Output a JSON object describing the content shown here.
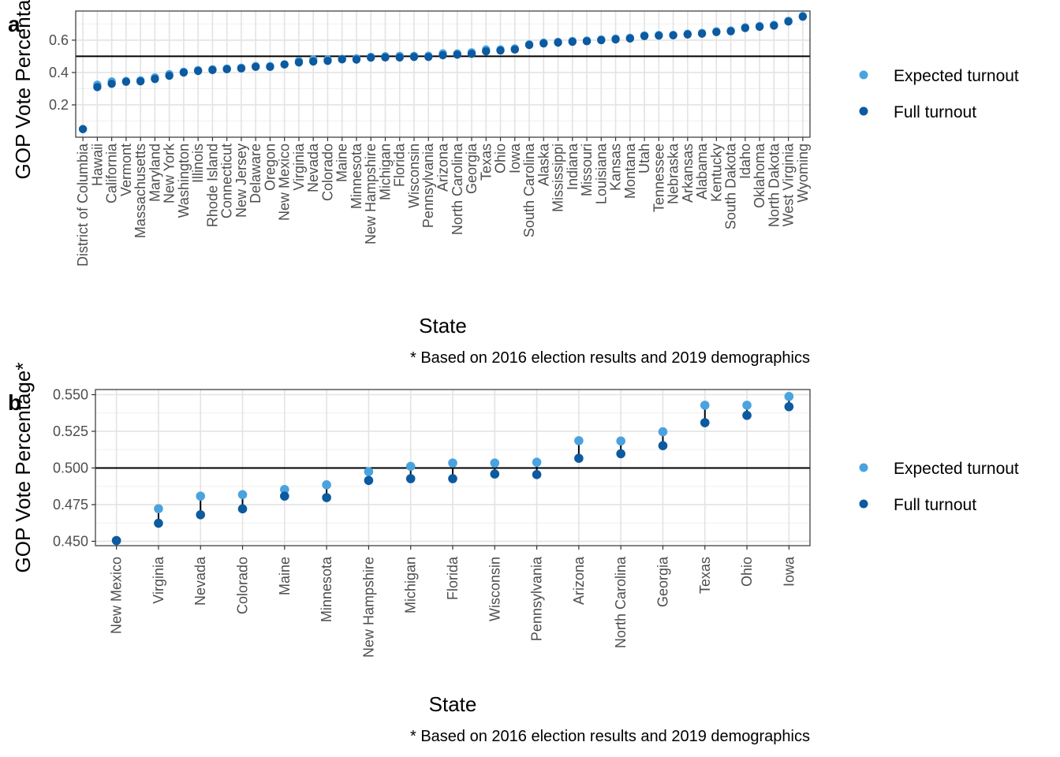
{
  "chart_data": [
    {
      "type": "scatter",
      "tag": "a",
      "xlabel": "State",
      "ylabel": "GOP Vote Percentage*",
      "caption": "* Based on 2016 election results and 2019 demographics",
      "ylim": [
        0.0,
        0.78
      ],
      "yticks": [
        0.2,
        0.4,
        0.6
      ],
      "yticklabels": [
        "0.2",
        "0.4",
        "0.6"
      ],
      "reference_line": 0.5,
      "grid": true,
      "legend_position": "right",
      "categories": [
        "District of Columbia",
        "Hawaii",
        "California",
        "Vermont",
        "Massachusetts",
        "Maryland",
        "New York",
        "Washington",
        "Illinois",
        "Rhode Island",
        "Connecticut",
        "New Jersey",
        "Delaware",
        "Oregon",
        "New Mexico",
        "Virginia",
        "Nevada",
        "Colorado",
        "Maine",
        "Minnesota",
        "New Hampshire",
        "Michigan",
        "Florida",
        "Wisconsin",
        "Pennsylvania",
        "Arizona",
        "North Carolina",
        "Georgia",
        "Texas",
        "Ohio",
        "Iowa",
        "South Carolina",
        "Alaska",
        "Mississippi",
        "Indiana",
        "Missouri",
        "Louisiana",
        "Kansas",
        "Montana",
        "Utah",
        "Tennessee",
        "Nebraska",
        "Arkansas",
        "Alabama",
        "Kentucky",
        "South Dakota",
        "Idaho",
        "Oklahoma",
        "North Dakota",
        "West Virginia",
        "Wyoming"
      ],
      "series": [
        {
          "name": "Expected turnout",
          "color": "#4aa3df",
          "values": [
            0.05,
            0.325,
            0.345,
            0.348,
            0.352,
            0.37,
            0.39,
            0.405,
            0.415,
            0.42,
            0.425,
            0.43,
            0.44,
            0.44,
            0.45,
            0.472,
            0.481,
            0.482,
            0.485,
            0.488,
            0.497,
            0.501,
            0.503,
            0.503,
            0.504,
            0.519,
            0.518,
            0.525,
            0.543,
            0.543,
            0.549,
            0.575,
            0.585,
            0.59,
            0.595,
            0.598,
            0.605,
            0.61,
            0.615,
            0.63,
            0.632,
            0.633,
            0.64,
            0.645,
            0.655,
            0.66,
            0.68,
            0.688,
            0.695,
            0.72,
            0.75
          ]
        },
        {
          "name": "Full turnout",
          "color": "#0c5aa0",
          "values": [
            0.05,
            0.31,
            0.33,
            0.343,
            0.345,
            0.36,
            0.38,
            0.4,
            0.41,
            0.415,
            0.42,
            0.425,
            0.435,
            0.435,
            0.45,
            0.462,
            0.468,
            0.472,
            0.481,
            0.48,
            0.492,
            0.493,
            0.493,
            0.496,
            0.496,
            0.507,
            0.51,
            0.515,
            0.531,
            0.536,
            0.542,
            0.57,
            0.58,
            0.585,
            0.59,
            0.593,
            0.6,
            0.605,
            0.61,
            0.625,
            0.628,
            0.63,
            0.635,
            0.64,
            0.65,
            0.655,
            0.675,
            0.683,
            0.69,
            0.715,
            0.745
          ]
        }
      ]
    },
    {
      "type": "scatter",
      "tag": "b",
      "xlabel": "State",
      "ylabel": "GOP Vote Percentage*",
      "caption": "* Based on 2016 election results and 2019 demographics",
      "ylim": [
        0.447,
        0.5535
      ],
      "yticks": [
        0.45,
        0.475,
        0.5,
        0.525,
        0.55
      ],
      "yticklabels": [
        "0.450",
        "0.475",
        "0.500",
        "0.525",
        "0.550"
      ],
      "reference_line": 0.5,
      "grid": true,
      "legend_position": "right",
      "categories": [
        "New Mexico",
        "Virginia",
        "Nevada",
        "Colorado",
        "Maine",
        "Minnesota",
        "New Hampshire",
        "Michigan",
        "Florida",
        "Wisconsin",
        "Pennsylvania",
        "Arizona",
        "North Carolina",
        "Georgia",
        "Texas",
        "Ohio",
        "Iowa"
      ],
      "series": [
        {
          "name": "Expected turnout",
          "color": "#4aa3df",
          "values": [
            0.4505,
            0.4722,
            0.4808,
            0.4818,
            0.4853,
            0.4885,
            0.4975,
            0.5011,
            0.5034,
            0.5034,
            0.5039,
            0.5186,
            0.5184,
            0.5247,
            0.5428,
            0.5428,
            0.5488
          ]
        },
        {
          "name": "Full turnout",
          "color": "#0c5aa0",
          "values": [
            0.4505,
            0.4623,
            0.4681,
            0.4721,
            0.4808,
            0.4798,
            0.4915,
            0.4927,
            0.4927,
            0.4959,
            0.4955,
            0.5066,
            0.5097,
            0.5152,
            0.5309,
            0.5359,
            0.5418
          ]
        }
      ]
    }
  ]
}
